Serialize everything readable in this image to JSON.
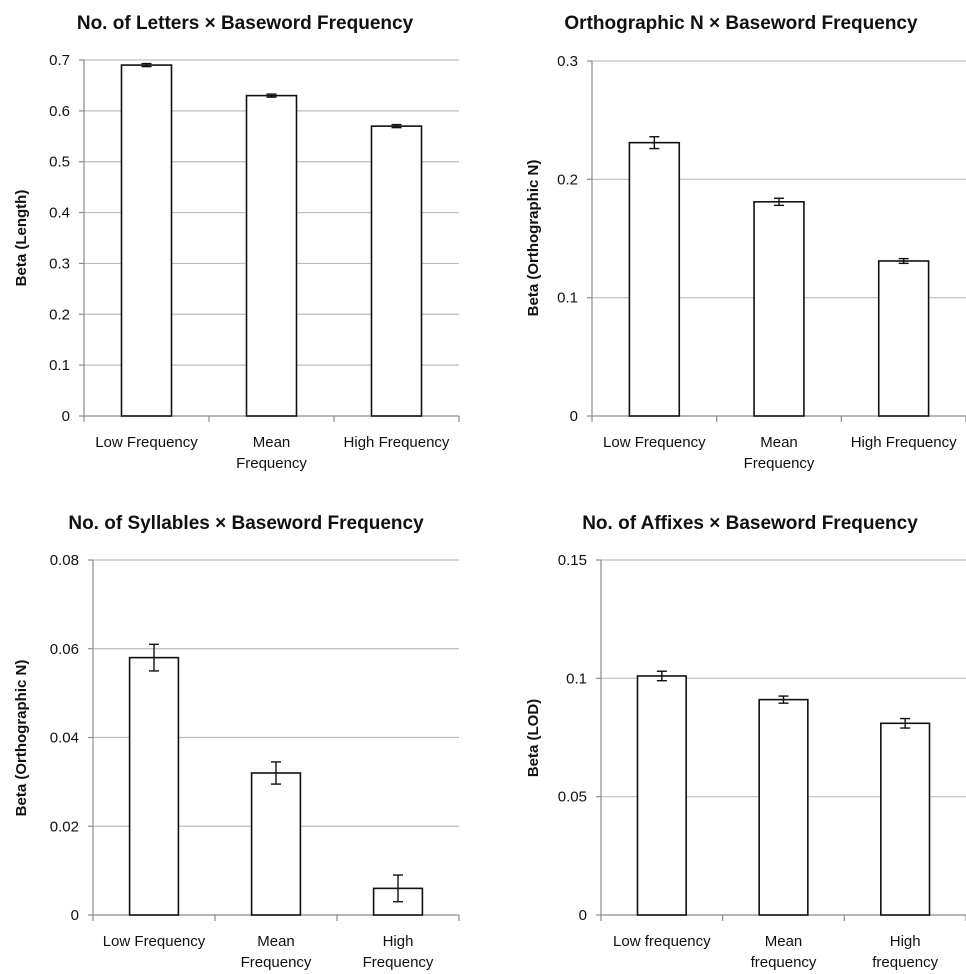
{
  "chart_data": [
    {
      "type": "bar",
      "title": "No. of Letters × Baseword Frequency",
      "ylabel": "Beta (Length)",
      "xlabel": "",
      "categories": [
        [
          "Low Frequency"
        ],
        [
          "Mean",
          "Frequency"
        ],
        [
          "High Frequency"
        ]
      ],
      "values": [
        0.69,
        0.63,
        0.57
      ],
      "errors": [
        0.003,
        0.003,
        0.003
      ],
      "ylim": [
        0,
        0.7
      ],
      "yticks": [
        0,
        0.1,
        0.2,
        0.3,
        0.4,
        0.5,
        0.6,
        0.7
      ],
      "ytick_labels": [
        "0",
        "0.1",
        "0.2",
        "0.3",
        "0.4",
        "0.5",
        "0.6",
        "0.7"
      ],
      "grid": true,
      "legend": "none"
    },
    {
      "type": "bar",
      "title": "Orthographic N × Baseword Frequency",
      "ylabel": "Beta (Orthographic N)",
      "xlabel": "",
      "categories": [
        [
          "Low Frequency"
        ],
        [
          "Mean",
          "Frequency"
        ],
        [
          "High Frequency"
        ]
      ],
      "values": [
        0.231,
        0.181,
        0.131
      ],
      "errors": [
        0.005,
        0.003,
        0.002
      ],
      "ylim": [
        0,
        0.3
      ],
      "yticks": [
        0,
        0.1,
        0.2,
        0.3
      ],
      "ytick_labels": [
        "0",
        "0.1",
        "0.2",
        "0.3"
      ],
      "grid": true,
      "legend": "none"
    },
    {
      "type": "bar",
      "title": "No. of Syllables × Baseword Frequency",
      "ylabel": "Beta (Orthographic N)",
      "xlabel": "",
      "categories": [
        [
          "Low Frequency"
        ],
        [
          "Mean",
          "Frequency"
        ],
        [
          "High",
          "Frequency"
        ]
      ],
      "values": [
        0.058,
        0.032,
        0.006
      ],
      "errors": [
        0.003,
        0.0025,
        0.003
      ],
      "ylim": [
        0,
        0.08
      ],
      "yticks": [
        0,
        0.02,
        0.04,
        0.06,
        0.08
      ],
      "ytick_labels": [
        "0",
        "0.02",
        "0.04",
        "0.06",
        "0.08"
      ],
      "grid": true,
      "legend": "none"
    },
    {
      "type": "bar",
      "title": "No. of Affixes × Baseword Frequency",
      "ylabel": "Beta (LOD)",
      "xlabel": "",
      "categories": [
        [
          "Low frequency"
        ],
        [
          "Mean",
          "frequency"
        ],
        [
          "High",
          "frequency"
        ]
      ],
      "values": [
        0.101,
        0.091,
        0.081
      ],
      "errors": [
        0.002,
        0.0015,
        0.002
      ],
      "ylim": [
        0,
        0.15
      ],
      "yticks": [
        0,
        0.05,
        0.1,
        0.15
      ],
      "ytick_labels": [
        "0",
        "0.05",
        "0.1",
        "0.15"
      ],
      "grid": true,
      "legend": "none"
    }
  ]
}
